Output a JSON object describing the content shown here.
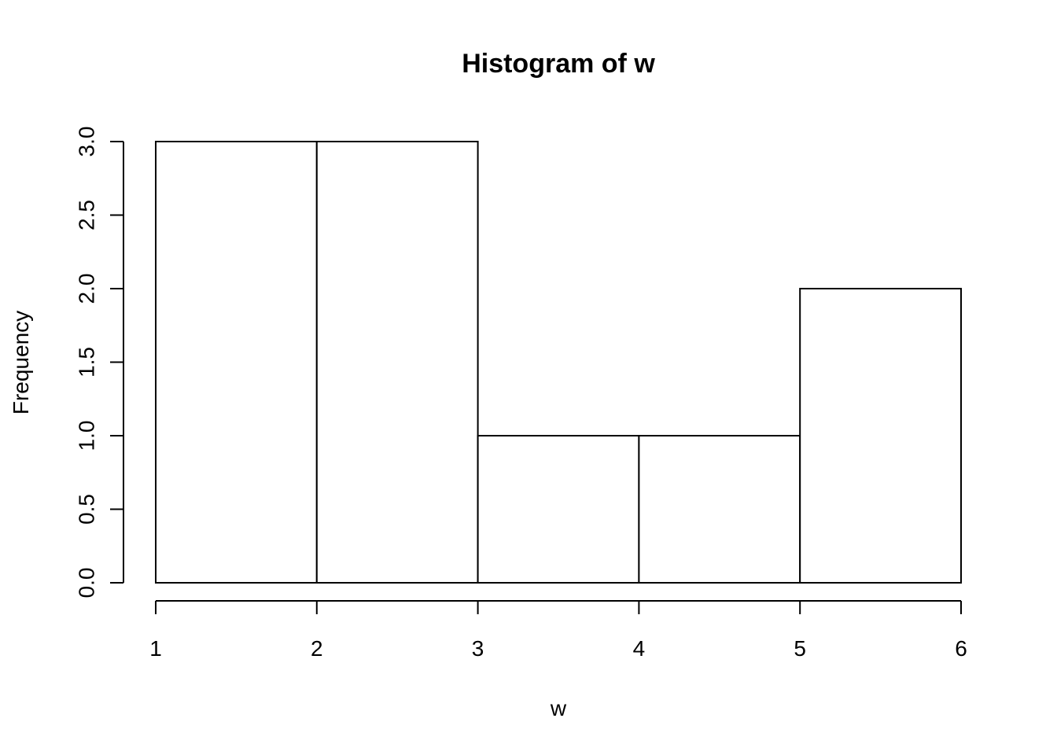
{
  "chart_data": {
    "type": "bar",
    "title": "Histogram of w",
    "xlabel": "w",
    "ylabel": "Frequency",
    "bins": [
      {
        "start": 1,
        "end": 2,
        "count": 3
      },
      {
        "start": 2,
        "end": 3,
        "count": 3
      },
      {
        "start": 3,
        "end": 4,
        "count": 1
      },
      {
        "start": 4,
        "end": 5,
        "count": 1
      },
      {
        "start": 5,
        "end": 6,
        "count": 2
      }
    ],
    "xlim": [
      1,
      6
    ],
    "ylim": [
      0,
      3
    ],
    "x_ticks": [
      1,
      2,
      3,
      4,
      5,
      6
    ],
    "x_tick_labels": [
      "1",
      "2",
      "3",
      "4",
      "5",
      "6"
    ],
    "y_ticks": [
      0,
      0.5,
      1,
      1.5,
      2,
      2.5,
      3
    ],
    "y_tick_labels": [
      "0.0",
      "0.5",
      "1.0",
      "1.5",
      "2.0",
      "2.5",
      "3.0"
    ],
    "grid": false,
    "bar_fill": "#ffffff",
    "bar_stroke": "#000000"
  }
}
